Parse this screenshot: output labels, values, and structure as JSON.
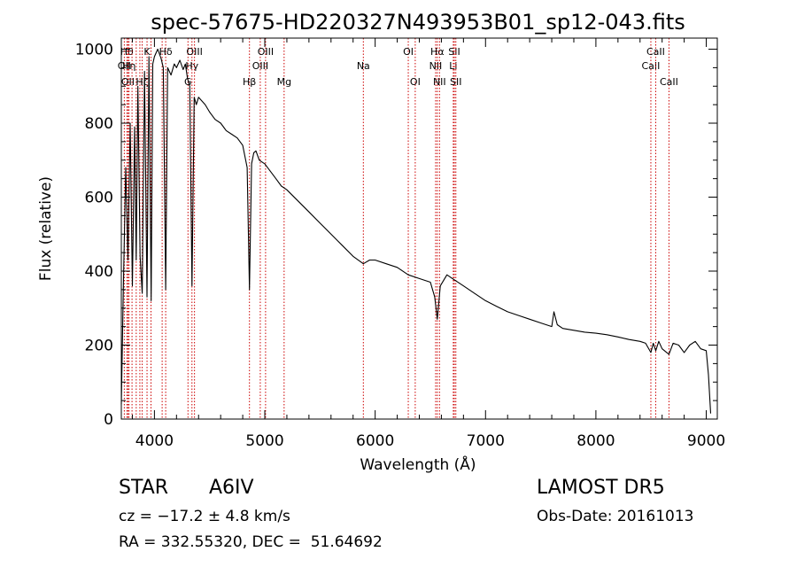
{
  "chart_data": {
    "type": "line",
    "title": "spec-57675-HD220327N493953B01_sp12-043.fits",
    "xlabel": "Wavelength (Å)",
    "ylabel": "Flux (relative)",
    "xlim": [
      3700,
      9100
    ],
    "ylim": [
      0,
      1030
    ],
    "xticks": [
      4000,
      5000,
      6000,
      7000,
      8000,
      9000
    ],
    "yticks": [
      0,
      200,
      400,
      600,
      800,
      1000
    ],
    "grid": false,
    "legend": "none",
    "colors": {
      "spectrum": "#000000",
      "lines": "#cc0000",
      "axes": "#000000"
    },
    "series": [
      {
        "x": [
          3700,
          3720,
          3740,
          3760,
          3780,
          3800,
          3820,
          3835,
          3850,
          3870,
          3889,
          3910,
          3933,
          3950,
          3970,
          3985,
          4000,
          4030,
          4060,
          4080,
          4102,
          4120,
          4150,
          4180,
          4200,
          4230,
          4260,
          4280,
          4300,
          4320,
          4340,
          4360,
          4380,
          4400,
          4430,
          4460,
          4500,
          4550,
          4600,
          4650,
          4700,
          4750,
          4800,
          4840,
          4861,
          4880,
          4900,
          4920,
          4950,
          5000,
          5050,
          5100,
          5150,
          5200,
          5300,
          5400,
          5500,
          5600,
          5700,
          5800,
          5893,
          5950,
          6000,
          6100,
          6200,
          6300,
          6400,
          6500,
          6540,
          6563,
          6590,
          6650,
          6700,
          6800,
          6900,
          7000,
          7100,
          7200,
          7300,
          7400,
          7500,
          7600,
          7620,
          7650,
          7700,
          7800,
          7900,
          8000,
          8100,
          8200,
          8300,
          8400,
          8450,
          8498,
          8520,
          8542,
          8570,
          8600,
          8662,
          8700,
          8750,
          8800,
          8850,
          8900,
          8950,
          9000,
          9020,
          9040
        ],
        "y": [
          40,
          380,
          680,
          430,
          800,
          360,
          790,
          430,
          900,
          440,
          340,
          940,
          330,
          980,
          320,
          960,
          980,
          1000,
          975,
          950,
          350,
          950,
          930,
          960,
          950,
          970,
          945,
          960,
          920,
          900,
          360,
          870,
          850,
          870,
          860,
          850,
          830,
          810,
          800,
          780,
          770,
          760,
          740,
          680,
          350,
          690,
          720,
          725,
          700,
          690,
          670,
          650,
          630,
          620,
          590,
          560,
          530,
          500,
          470,
          440,
          420,
          430,
          430,
          420,
          410,
          390,
          380,
          370,
          330,
          270,
          360,
          390,
          380,
          360,
          340,
          320,
          305,
          290,
          280,
          270,
          260,
          250,
          290,
          255,
          245,
          240,
          235,
          232,
          228,
          222,
          215,
          210,
          205,
          180,
          205,
          185,
          210,
          190,
          175,
          205,
          200,
          180,
          200,
          210,
          190,
          185,
          120,
          15
        ]
      }
    ],
    "line_markers": [
      {
        "x": 3750,
        "label": "Hθ",
        "row": 0
      },
      {
        "x": 3770,
        "label": "Hη",
        "row": 1
      },
      {
        "x": 3727,
        "label": "OII",
        "row": 1
      },
      {
        "x": 3760,
        "label": "OII",
        "row": 2
      },
      {
        "x": 3797,
        "label": "",
        "row": 0
      },
      {
        "x": 3835,
        "label": "",
        "row": 0
      },
      {
        "x": 3868,
        "label": "",
        "row": 0
      },
      {
        "x": 3889,
        "label": "Hζ",
        "row": 2
      },
      {
        "x": 3933,
        "label": "K",
        "row": 0
      },
      {
        "x": 3969,
        "label": "",
        "row": 0
      },
      {
        "x": 4070,
        "label": "",
        "row": 0
      },
      {
        "x": 4102,
        "label": "Hδ",
        "row": 0
      },
      {
        "x": 4304,
        "label": "G",
        "row": 2
      },
      {
        "x": 4340,
        "label": "Hγ",
        "row": 1
      },
      {
        "x": 4363,
        "label": "OIII",
        "row": 0
      },
      {
        "x": 4861,
        "label": "Hβ",
        "row": 2
      },
      {
        "x": 4959,
        "label": "OIII",
        "row": 1
      },
      {
        "x": 5007,
        "label": "OIII",
        "row": 0
      },
      {
        "x": 5175,
        "label": "Mg",
        "row": 2
      },
      {
        "x": 5893,
        "label": "Na",
        "row": 1
      },
      {
        "x": 6300,
        "label": "OI",
        "row": 0
      },
      {
        "x": 6363,
        "label": "OI",
        "row": 2
      },
      {
        "x": 6548,
        "label": "NII",
        "row": 1
      },
      {
        "x": 6563,
        "label": "Hα",
        "row": 0
      },
      {
        "x": 6583,
        "label": "NII",
        "row": 2
      },
      {
        "x": 6708,
        "label": "Li",
        "row": 1
      },
      {
        "x": 6717,
        "label": "SII",
        "row": 0
      },
      {
        "x": 6731,
        "label": "SII",
        "row": 2
      },
      {
        "x": 8498,
        "label": "CaII",
        "row": 1
      },
      {
        "x": 8542,
        "label": "CaII",
        "row": 0
      },
      {
        "x": 8662,
        "label": "CaII",
        "row": 2
      }
    ]
  },
  "info": {
    "object_class": "STAR",
    "subclass": "A6IV",
    "survey": "LAMOST DR5",
    "redshift": "cz = −17.2 ± 4.8 km/s",
    "obs_date": "Obs-Date: 20161013",
    "coords": "RA = 332.55320, DEC =  51.64692"
  }
}
